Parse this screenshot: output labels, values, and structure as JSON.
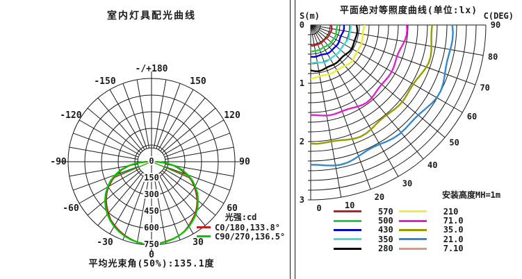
{
  "left_panel": {
    "title": "室内灯具配光曲线",
    "legend": {
      "title": "光强:cd",
      "entries": [
        {
          "label": "C0/180,133.8°",
          "color": "#bb2222"
        },
        {
          "label": "C90/270,136.5°",
          "color": "#00cc00"
        }
      ]
    },
    "footer": "平均光束角(50%):135.1度"
  },
  "right_panel": {
    "title": "平面绝对等照度曲线(单位:lx)",
    "corner_left": "S(m)",
    "corner_right": "C(DEG)",
    "mount_height": "安装高度MH=1m"
  },
  "chart_data": [
    {
      "type": "line",
      "variant": "polar-intensity-curve",
      "title": "室内灯具配光曲线",
      "unit_label": "光强:cd",
      "ring_values": [
        0,
        150,
        300,
        450,
        600,
        750
      ],
      "angle_tick_step_deg": 10,
      "angle_labels": [
        {
          "angle": 180,
          "label": "-/+180"
        },
        {
          "angle": -150,
          "label": "-150"
        },
        {
          "angle": 150,
          "label": "150"
        },
        {
          "angle": -120,
          "label": "-120"
        },
        {
          "angle": 120,
          "label": "120"
        },
        {
          "angle": -90,
          "label": "-90"
        },
        {
          "angle": 90,
          "label": "90"
        },
        {
          "angle": -60,
          "label": "-60"
        },
        {
          "angle": 60,
          "label": "60"
        },
        {
          "angle": -30,
          "label": "-30"
        },
        {
          "angle": 30,
          "label": "30"
        },
        {
          "angle": 0,
          "label": "0"
        }
      ],
      "angles_deg": [
        -90,
        -85,
        -80,
        -75,
        -70,
        -65,
        -60,
        -55,
        -50,
        -45,
        -40,
        -35,
        -30,
        -25,
        -20,
        -15,
        -10,
        -5,
        0,
        5,
        10,
        15,
        20,
        25,
        30,
        35,
        40,
        45,
        50,
        55,
        60,
        65,
        70,
        75,
        80,
        85,
        90
      ],
      "series": [
        {
          "name": "C0/180,133.8°",
          "color": "#bb2222",
          "beam_angle_deg": 133.8,
          "beam_half_angle_deg": 66.9,
          "values_cd": [
            45,
            124,
            204,
            276,
            334,
            390,
            446,
            492,
            534,
            570,
            606,
            640,
            664,
            686,
            706,
            722,
            736,
            746,
            744,
            740,
            730,
            722,
            712,
            694,
            668,
            638,
            612,
            576,
            538,
            490,
            446,
            396,
            340,
            268,
            208,
            118,
            45
          ]
        },
        {
          "name": "C90/270,136.5°",
          "color": "#00cc00",
          "beam_angle_deg": 136.5,
          "beam_half_angle_deg": 68.3,
          "values_cd": [
            50,
            130,
            214,
            288,
            348,
            406,
            456,
            504,
            546,
            584,
            618,
            648,
            674,
            694,
            712,
            726,
            736,
            742,
            742,
            740,
            734,
            724,
            710,
            696,
            674,
            648,
            620,
            586,
            546,
            506,
            458,
            408,
            350,
            290,
            216,
            132,
            50
          ]
        }
      ],
      "avg_beam_angle_text": "平均光束角(50%):135.1度"
    },
    {
      "type": "line",
      "variant": "iso-illuminance-quarter-polar",
      "title": "平面绝对等照度曲线(单位:lx)",
      "radial_axis": {
        "label": "S(m)",
        "ticks": [
          0,
          1,
          2,
          3
        ],
        "max_m": 3
      },
      "angular_axis": {
        "label": "C(DEG)",
        "ticks": [
          0,
          10,
          20,
          30,
          40,
          50,
          60,
          70,
          80,
          90
        ]
      },
      "grid_rings_per_meter": 6,
      "mount_height_text": "安装高度MH=1m",
      "levels": [
        {
          "lx": "570",
          "color": "#bb2222",
          "s_at_c0_m": 0.35,
          "s_at_c90_m": 0.36
        },
        {
          "lx": "500",
          "color": "#22cc44",
          "s_at_c0_m": 0.45,
          "s_at_c90_m": 0.46
        },
        {
          "lx": "430",
          "color": "#0000dd",
          "s_at_c0_m": 0.55,
          "s_at_c90_m": 0.57
        },
        {
          "lx": "350",
          "color": "#44dddd",
          "s_at_c0_m": 0.66,
          "s_at_c90_m": 0.68
        },
        {
          "lx": "280",
          "color": "#000000",
          "s_at_c0_m": 0.78,
          "s_at_c90_m": 0.8
        },
        {
          "lx": "210",
          "color": "#eeee33",
          "s_at_c0_m": 0.9,
          "s_at_c90_m": 0.93
        },
        {
          "lx": "71.0",
          "color": "#dd22cc",
          "s_at_c0_m": 1.58,
          "s_at_c90_m": 1.62
        },
        {
          "lx": "35.0",
          "color": "#999900",
          "s_at_c0_m": 2.03,
          "s_at_c90_m": 2.08
        },
        {
          "lx": "21.0",
          "color": "#3388cc",
          "s_at_c0_m": 2.39,
          "s_at_c90_m": 2.45
        },
        {
          "lx": "7.10",
          "color": "#dd9977",
          "s_at_c0_m": 3.36,
          "s_at_c90_m": 3.44
        }
      ]
    }
  ]
}
